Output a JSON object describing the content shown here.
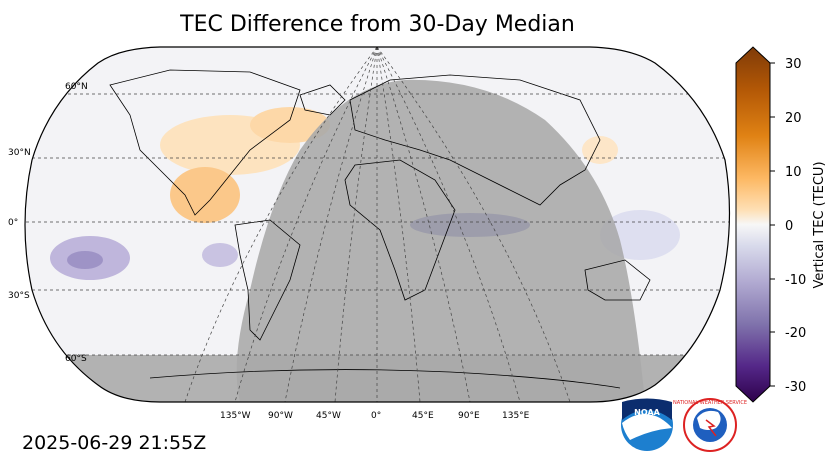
{
  "title": "TEC Difference from 30-Day Median",
  "timestamp": "2025-06-29 21:55Z",
  "map": {
    "lat_labels": [
      "60°N",
      "30°N",
      "0°",
      "30°S",
      "60°S"
    ],
    "lon_labels": [
      "135°W",
      "90°W",
      "45°W",
      "0°",
      "45°E",
      "90°E",
      "135°E"
    ],
    "night_shade_color": "#a9a9a9"
  },
  "colorbar": {
    "label": "Vertical TEC (TECU)",
    "ticks": [
      "30",
      "20",
      "10",
      "0",
      "-10",
      "-20",
      "-30"
    ],
    "range": [
      -30,
      30
    ],
    "colors_top_to_bottom": [
      "#7f3b08",
      "#b35806",
      "#e08214",
      "#fdb863",
      "#fee0b6",
      "#f7f7f7",
      "#d8daeb",
      "#b2abd2",
      "#8073ac",
      "#542788",
      "#2d004b"
    ]
  },
  "logos": {
    "noaa_text": "NOAA",
    "nws_text": "NATIONAL WEATHER SERVICE"
  }
}
